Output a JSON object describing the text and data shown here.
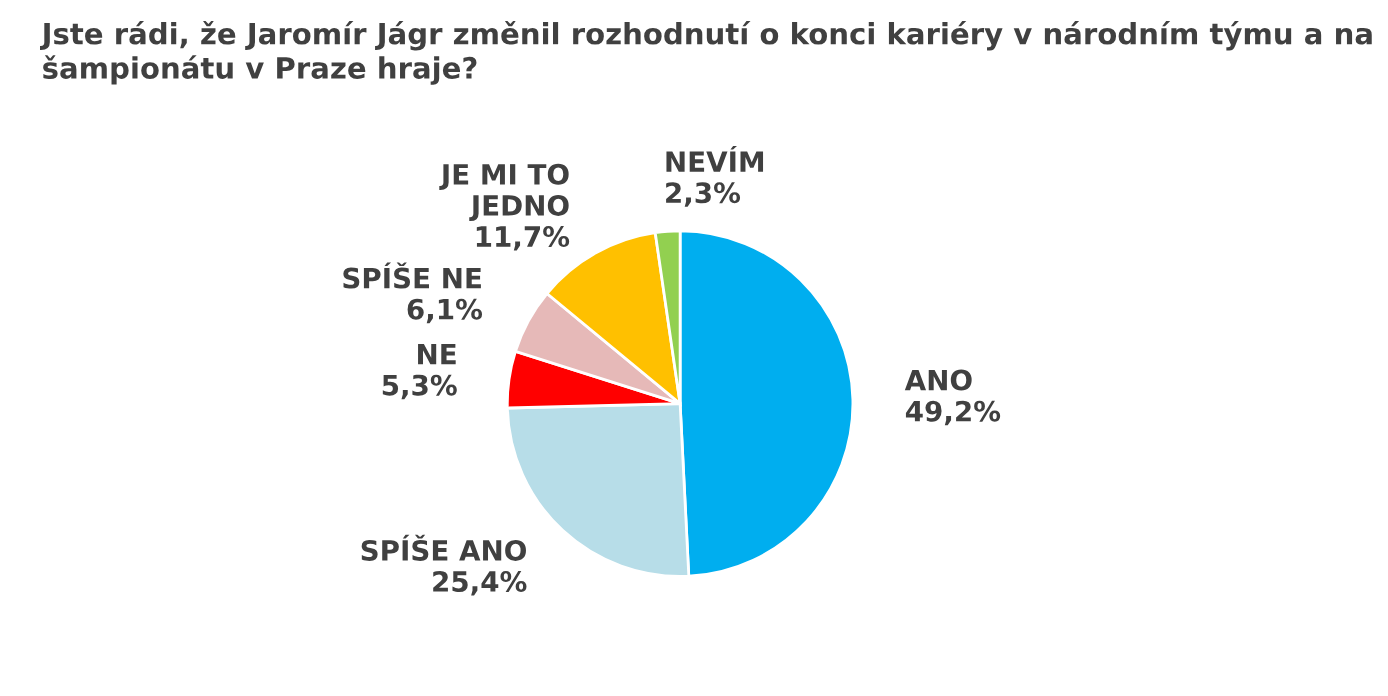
{
  "chart_data": {
    "type": "pie",
    "title": "Jste rádi, že Jaromír Jágr změnil rozhodnutí o konci kariéry v národním týmu a na šampionátu v Praze hraje?",
    "categories": [
      "ANO",
      "SPÍŠE ANO",
      "NE",
      "SPÍŠE NE",
      "JE MI TO\nJEDNO",
      "NEVÍM"
    ],
    "values": [
      49.2,
      25.4,
      5.3,
      6.1,
      11.7,
      2.3
    ],
    "value_labels": [
      "49,2%",
      "25,4%",
      "5,3%",
      "6,1%",
      "11,7%",
      "2,3%"
    ],
    "colors": [
      "#00aeef",
      "#b7dde8",
      "#ff0000",
      "#e6b9b8",
      "#ffc000",
      "#92d050"
    ]
  }
}
